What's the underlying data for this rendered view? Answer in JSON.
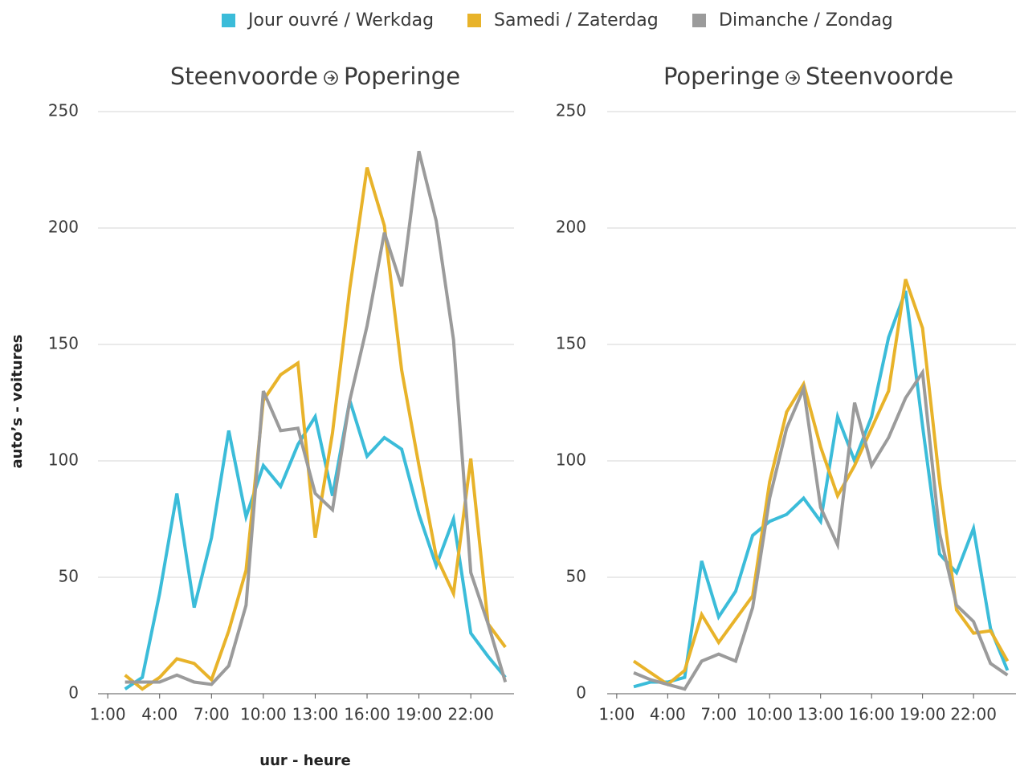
{
  "chart_data": [
    {
      "type": "line",
      "title_from": "Steenvoorde",
      "title_to": "Poperinge",
      "xlabel": "uur - heure",
      "ylabel": "auto’s - voitures",
      "x": [
        2,
        3,
        4,
        5,
        6,
        7,
        8,
        9,
        10,
        11,
        12,
        13,
        14,
        15,
        16,
        17,
        18,
        19,
        20,
        21,
        22,
        23,
        24
      ],
      "xlim": [
        0.25,
        24.5
      ],
      "xticks": [
        {
          "value": 1,
          "label": "1:00"
        },
        {
          "value": 4,
          "label": "4:00"
        },
        {
          "value": 7,
          "label": "7:00"
        },
        {
          "value": 10,
          "label": "10:00"
        },
        {
          "value": 13,
          "label": "13:00"
        },
        {
          "value": 16,
          "label": "16:00"
        },
        {
          "value": 19,
          "label": "19:00"
        },
        {
          "value": 22,
          "label": "22:00"
        }
      ],
      "ylim": [
        0,
        250
      ],
      "yticks": [
        0,
        50,
        100,
        150,
        200,
        250
      ],
      "grid": true,
      "series": [
        {
          "name": "Jour ouvré / Werkdag",
          "color": "#3bbcd9",
          "values": [
            2,
            7,
            43,
            86,
            37,
            67,
            113,
            76,
            98,
            89,
            107,
            119,
            85,
            126,
            102,
            110,
            105,
            77,
            55,
            75,
            26,
            16,
            7
          ]
        },
        {
          "name": "Samedi / Zaterdag",
          "color": "#e8b32a",
          "values": [
            8,
            2,
            7,
            15,
            13,
            6,
            27,
            53,
            126,
            137,
            142,
            67,
            112,
            174,
            226,
            201,
            139,
            98,
            59,
            43,
            101,
            30,
            20
          ]
        },
        {
          "name": "Dimanche / Zondag",
          "color": "#9b9b9b",
          "values": [
            5,
            5,
            5,
            8,
            5,
            4,
            12,
            38,
            130,
            113,
            114,
            86,
            79,
            126,
            158,
            198,
            175,
            233,
            203,
            152,
            52,
            30,
            5
          ]
        }
      ]
    },
    {
      "type": "line",
      "title_from": "Poperinge",
      "title_to": "Steenvoorde",
      "x": [
        2,
        3,
        4,
        5,
        6,
        7,
        8,
        9,
        10,
        11,
        12,
        13,
        14,
        15,
        16,
        17,
        18,
        19,
        20,
        21,
        22,
        23,
        24
      ],
      "xlim": [
        0.25,
        24.5
      ],
      "xticks": [
        {
          "value": 1,
          "label": "1:00"
        },
        {
          "value": 4,
          "label": "4:00"
        },
        {
          "value": 7,
          "label": "7:00"
        },
        {
          "value": 10,
          "label": "10:00"
        },
        {
          "value": 13,
          "label": "13:00"
        },
        {
          "value": 16,
          "label": "16:00"
        },
        {
          "value": 19,
          "label": "19:00"
        },
        {
          "value": 22,
          "label": "22:00"
        }
      ],
      "ylim": [
        0,
        250
      ],
      "yticks": [
        0,
        50,
        100,
        150,
        200,
        250
      ],
      "grid": true,
      "series": [
        {
          "name": "Jour ouvré / Werkdag",
          "color": "#3bbcd9",
          "values": [
            3,
            5,
            5,
            7,
            57,
            33,
            44,
            68,
            74,
            77,
            84,
            74,
            119,
            100,
            119,
            153,
            173,
            115,
            60,
            52,
            71,
            28,
            10
          ]
        },
        {
          "name": "Samedi / Zaterdag",
          "color": "#e8b32a",
          "values": [
            14,
            9,
            4,
            10,
            34,
            22,
            32,
            42,
            91,
            121,
            133,
            106,
            85,
            98,
            114,
            130,
            178,
            157,
            91,
            36,
            26,
            27,
            14
          ]
        },
        {
          "name": "Dimanche / Zondag",
          "color": "#9b9b9b",
          "values": [
            9,
            6,
            4,
            2,
            14,
            17,
            14,
            37,
            84,
            114,
            131,
            80,
            64,
            125,
            98,
            110,
            127,
            138,
            69,
            38,
            31,
            13,
            8
          ]
        }
      ]
    }
  ]
}
